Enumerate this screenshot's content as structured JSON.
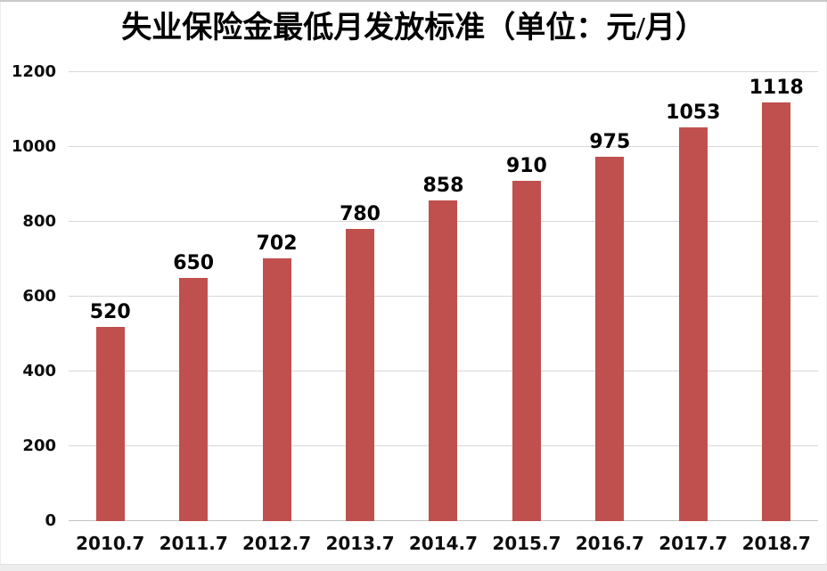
{
  "chart_data": {
    "type": "bar",
    "title": "失业保险金最低月发放标准（单位：元/月）",
    "unit": "元/月",
    "categories": [
      "2010.7",
      "2011.7",
      "2012.7",
      "2013.7",
      "2014.7",
      "2015.7",
      "2016.7",
      "2017.7",
      "2018.7"
    ],
    "values": [
      520,
      650,
      702,
      780,
      858,
      910,
      975,
      1053,
      1118
    ],
    "xlabel": "",
    "ylabel": "",
    "ylim": [
      0,
      1200
    ],
    "yticks": [
      0,
      200,
      400,
      600,
      800,
      1000,
      1200
    ],
    "grid": true,
    "legend": false,
    "value_labels": true,
    "bar_color": "#c0504d",
    "gridline_color": "#d7d7d7",
    "axis_line_color": "#c2c2c2",
    "text_color": "#000000",
    "background_color": "#ffffff"
  }
}
